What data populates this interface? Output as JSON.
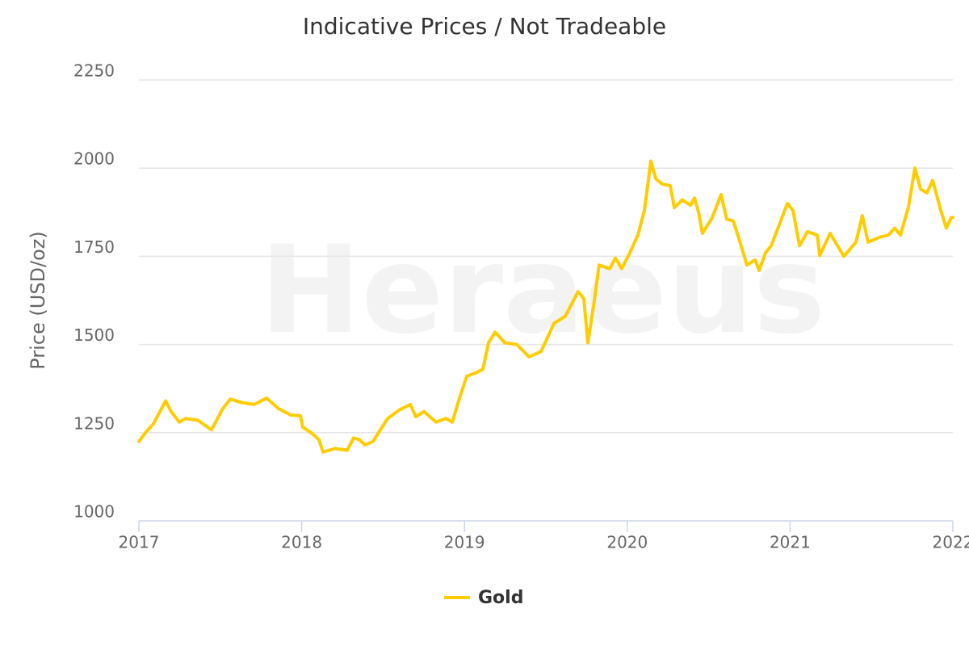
{
  "chart_data": {
    "type": "line",
    "title": "Indicative Prices / Not Tradeable",
    "watermark": "Heraeus",
    "y_label": "Price (USD/oz)",
    "x": [
      2017.0,
      2017.04,
      2017.089,
      2017.164,
      2017.198,
      2017.248,
      2017.288,
      2017.362,
      2017.446,
      2017.511,
      2017.561,
      2017.635,
      2017.709,
      2017.784,
      2017.858,
      2017.933,
      2017.992,
      2018.007,
      2018.057,
      2018.106,
      2018.131,
      2018.205,
      2018.28,
      2018.319,
      2018.354,
      2018.389,
      2018.438,
      2018.528,
      2018.602,
      2018.667,
      2018.701,
      2018.751,
      2018.825,
      2018.885,
      2018.925,
      2018.964,
      2019.014,
      2019.073,
      2019.113,
      2019.148,
      2019.188,
      2019.247,
      2019.321,
      2019.396,
      2019.47,
      2019.55,
      2019.619,
      2019.698,
      2019.733,
      2019.758,
      2019.793,
      2019.827,
      2019.892,
      2019.927,
      2019.966,
      2020.016,
      2020.065,
      2020.105,
      2020.145,
      2020.175,
      2020.214,
      2020.264,
      2020.289,
      2020.338,
      2020.388,
      2020.413,
      2020.438,
      2020.462,
      2020.522,
      2020.576,
      2020.611,
      2020.651,
      2020.686,
      2020.735,
      2020.785,
      2020.81,
      2020.849,
      2020.884,
      2020.934,
      2020.983,
      2021.018,
      2021.058,
      2021.107,
      2021.167,
      2021.182,
      2021.246,
      2021.33,
      2021.405,
      2021.444,
      2021.479,
      2021.554,
      2021.603,
      2021.643,
      2021.678,
      2021.727,
      2021.767,
      2021.802,
      2021.841,
      2021.876,
      2021.926,
      2021.96,
      2021.99,
      2022.0
    ],
    "series": [
      {
        "name": "Gold",
        "color": "#ffcc00",
        "values": [
          1225,
          1250,
          1275,
          1340,
          1310,
          1280,
          1290,
          1285,
          1258,
          1315,
          1345,
          1335,
          1330,
          1348,
          1318,
          1300,
          1298,
          1265,
          1250,
          1230,
          1195,
          1205,
          1200,
          1235,
          1230,
          1215,
          1225,
          1290,
          1315,
          1330,
          1295,
          1310,
          1280,
          1290,
          1280,
          1340,
          1410,
          1420,
          1430,
          1505,
          1535,
          1505,
          1500,
          1465,
          1480,
          1560,
          1580,
          1650,
          1630,
          1505,
          1610,
          1725,
          1715,
          1745,
          1715,
          1760,
          1810,
          1880,
          2020,
          1970,
          1955,
          1950,
          1888,
          1910,
          1895,
          1915,
          1875,
          1815,
          1860,
          1925,
          1855,
          1850,
          1800,
          1725,
          1740,
          1710,
          1760,
          1780,
          1840,
          1900,
          1880,
          1780,
          1820,
          1810,
          1752,
          1815,
          1750,
          1790,
          1865,
          1790,
          1805,
          1810,
          1830,
          1810,
          1890,
          2000,
          1940,
          1930,
          1965,
          1880,
          1830,
          1860,
          1860
        ]
      }
    ],
    "xlim": [
      2017,
      2022
    ],
    "xticks": [
      2017,
      2018,
      2019,
      2020,
      2021,
      2022
    ],
    "ylim": [
      1000,
      2250
    ],
    "yticks": [
      1000,
      1250,
      1500,
      1750,
      2000,
      2250
    ],
    "grid": true,
    "legend": "bottom"
  }
}
